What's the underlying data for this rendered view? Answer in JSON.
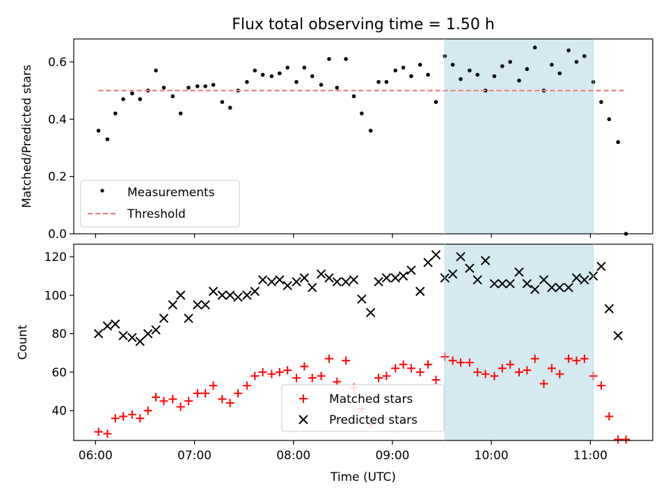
{
  "figure": {
    "title": "Flux total observing time = 1.50 h",
    "shaded_region": {
      "x_start": 9.53,
      "x_end": 11.03,
      "color": "#d4eaf0"
    }
  },
  "chart_data": [
    {
      "type": "scatter",
      "ylabel": "Matched/Predicted stars",
      "xlim": [
        5.78,
        11.63
      ],
      "ylim": [
        0,
        0.68
      ],
      "yticks": [
        0.0,
        0.2,
        0.4,
        0.6
      ],
      "ytick_labels": [
        "0.0",
        "0.2",
        "0.4",
        "0.6"
      ],
      "grid": false,
      "legend": {
        "position": "bottom-left",
        "entries": [
          "Measurements",
          "Threshold"
        ]
      },
      "series": [
        {
          "name": "Measurements",
          "marker": "dot",
          "color": "#000000",
          "x": [
            6.03,
            6.12,
            6.2,
            6.28,
            6.37,
            6.45,
            6.53,
            6.61,
            6.69,
            6.78,
            6.86,
            6.94,
            7.03,
            7.11,
            7.19,
            7.28,
            7.36,
            7.44,
            7.53,
            7.61,
            7.69,
            7.78,
            7.86,
            7.94,
            8.03,
            8.11,
            8.19,
            8.28,
            8.36,
            8.44,
            8.53,
            8.61,
            8.69,
            8.78,
            8.86,
            8.94,
            9.03,
            9.11,
            9.19,
            9.28,
            9.36,
            9.44,
            9.53,
            9.61,
            9.69,
            9.78,
            9.86,
            9.94,
            10.03,
            10.11,
            10.19,
            10.28,
            10.36,
            10.44,
            10.53,
            10.61,
            10.69,
            10.78,
            10.86,
            10.94,
            11.03,
            11.11,
            11.19,
            11.28,
            11.36
          ],
          "y": [
            0.36,
            0.33,
            0.42,
            0.47,
            0.49,
            0.47,
            0.5,
            0.57,
            0.51,
            0.48,
            0.42,
            0.51,
            0.515,
            0.515,
            0.52,
            0.46,
            0.44,
            0.5,
            0.53,
            0.57,
            0.555,
            0.55,
            0.56,
            0.58,
            0.53,
            0.58,
            0.55,
            0.52,
            0.61,
            0.51,
            0.61,
            0.48,
            0.42,
            0.36,
            0.53,
            0.53,
            0.57,
            0.58,
            0.55,
            0.59,
            0.555,
            0.46,
            0.62,
            0.59,
            0.54,
            0.57,
            0.555,
            0.5,
            0.55,
            0.585,
            0.6,
            0.535,
            0.575,
            0.65,
            0.5,
            0.59,
            0.56,
            0.64,
            0.6,
            0.62,
            0.53,
            0.46,
            0.4,
            0.32,
            0.0
          ]
        },
        {
          "name": "Threshold",
          "style": "dashed",
          "color": "#f08080",
          "x": [
            6.03,
            11.36
          ],
          "y": [
            0.5,
            0.5
          ]
        }
      ]
    },
    {
      "type": "scatter",
      "xlabel": "Time (UTC)",
      "ylabel": "Count",
      "xlim": [
        5.78,
        11.63
      ],
      "ylim": [
        24.5,
        126.5
      ],
      "xticks": [
        6,
        7,
        8,
        9,
        10,
        11
      ],
      "xtick_labels": [
        "06:00",
        "07:00",
        "08:00",
        "09:00",
        "10:00",
        "11:00"
      ],
      "yticks": [
        40,
        60,
        80,
        100,
        120
      ],
      "ytick_labels": [
        "40",
        "60",
        "80",
        "100",
        "120"
      ],
      "grid": false,
      "legend": {
        "position": "bottom-center",
        "entries": [
          "Matched stars",
          "Predicted stars"
        ]
      },
      "series": [
        {
          "name": "Matched stars",
          "marker": "plus",
          "color": "#ff0000",
          "x": [
            6.03,
            6.12,
            6.2,
            6.28,
            6.37,
            6.45,
            6.53,
            6.61,
            6.69,
            6.78,
            6.86,
            6.94,
            7.03,
            7.11,
            7.19,
            7.28,
            7.36,
            7.44,
            7.53,
            7.61,
            7.69,
            7.78,
            7.86,
            7.94,
            8.03,
            8.11,
            8.19,
            8.28,
            8.36,
            8.44,
            8.53,
            8.61,
            8.69,
            8.78,
            8.86,
            8.94,
            9.03,
            9.11,
            9.19,
            9.28,
            9.36,
            9.44,
            9.53,
            9.61,
            9.69,
            9.78,
            9.86,
            9.94,
            10.03,
            10.11,
            10.19,
            10.28,
            10.36,
            10.44,
            10.53,
            10.61,
            10.69,
            10.78,
            10.86,
            10.94,
            11.03,
            11.11,
            11.19,
            11.28,
            11.36
          ],
          "y": [
            29,
            28,
            36,
            37,
            38,
            36,
            40,
            47,
            45,
            46,
            42,
            45,
            49,
            49,
            53,
            46,
            44,
            49,
            53,
            58,
            60,
            59,
            60,
            61,
            57,
            63,
            57,
            58,
            67,
            55,
            66,
            52,
            41,
            33,
            57,
            58,
            62,
            64,
            62,
            60,
            64,
            56,
            68,
            66,
            65,
            65,
            60,
            59,
            58,
            62,
            64,
            60,
            61,
            67,
            54,
            62,
            59,
            67,
            66,
            67,
            58,
            53,
            37,
            25,
            25
          ]
        },
        {
          "name": "Predicted stars",
          "marker": "x",
          "color": "#000000",
          "x": [
            6.03,
            6.12,
            6.2,
            6.28,
            6.37,
            6.45,
            6.53,
            6.61,
            6.69,
            6.78,
            6.86,
            6.94,
            7.03,
            7.11,
            7.19,
            7.28,
            7.36,
            7.44,
            7.53,
            7.61,
            7.69,
            7.78,
            7.86,
            7.94,
            8.03,
            8.11,
            8.19,
            8.28,
            8.36,
            8.44,
            8.53,
            8.61,
            8.69,
            8.78,
            8.86,
            8.94,
            9.03,
            9.11,
            9.19,
            9.28,
            9.36,
            9.44,
            9.53,
            9.61,
            9.69,
            9.78,
            9.86,
            9.94,
            10.03,
            10.11,
            10.19,
            10.28,
            10.36,
            10.44,
            10.53,
            10.61,
            10.69,
            10.78,
            10.86,
            10.94,
            11.03,
            11.11,
            11.19,
            11.28,
            11.36
          ],
          "y": [
            80,
            84,
            85,
            79,
            78,
            76,
            80,
            82,
            88,
            95,
            100,
            88,
            95,
            95,
            102,
            100,
            100,
            99,
            100,
            102,
            108,
            107,
            108,
            105,
            107,
            109,
            104,
            111,
            109,
            107,
            107,
            108,
            98,
            91,
            107,
            109,
            109,
            110,
            113,
            102,
            117,
            121,
            109,
            111,
            120,
            114,
            108,
            118,
            106,
            106,
            106,
            112,
            106,
            103,
            108,
            104,
            104,
            104,
            109,
            108,
            110,
            115,
            93,
            79,
            null
          ]
        }
      ]
    }
  ]
}
